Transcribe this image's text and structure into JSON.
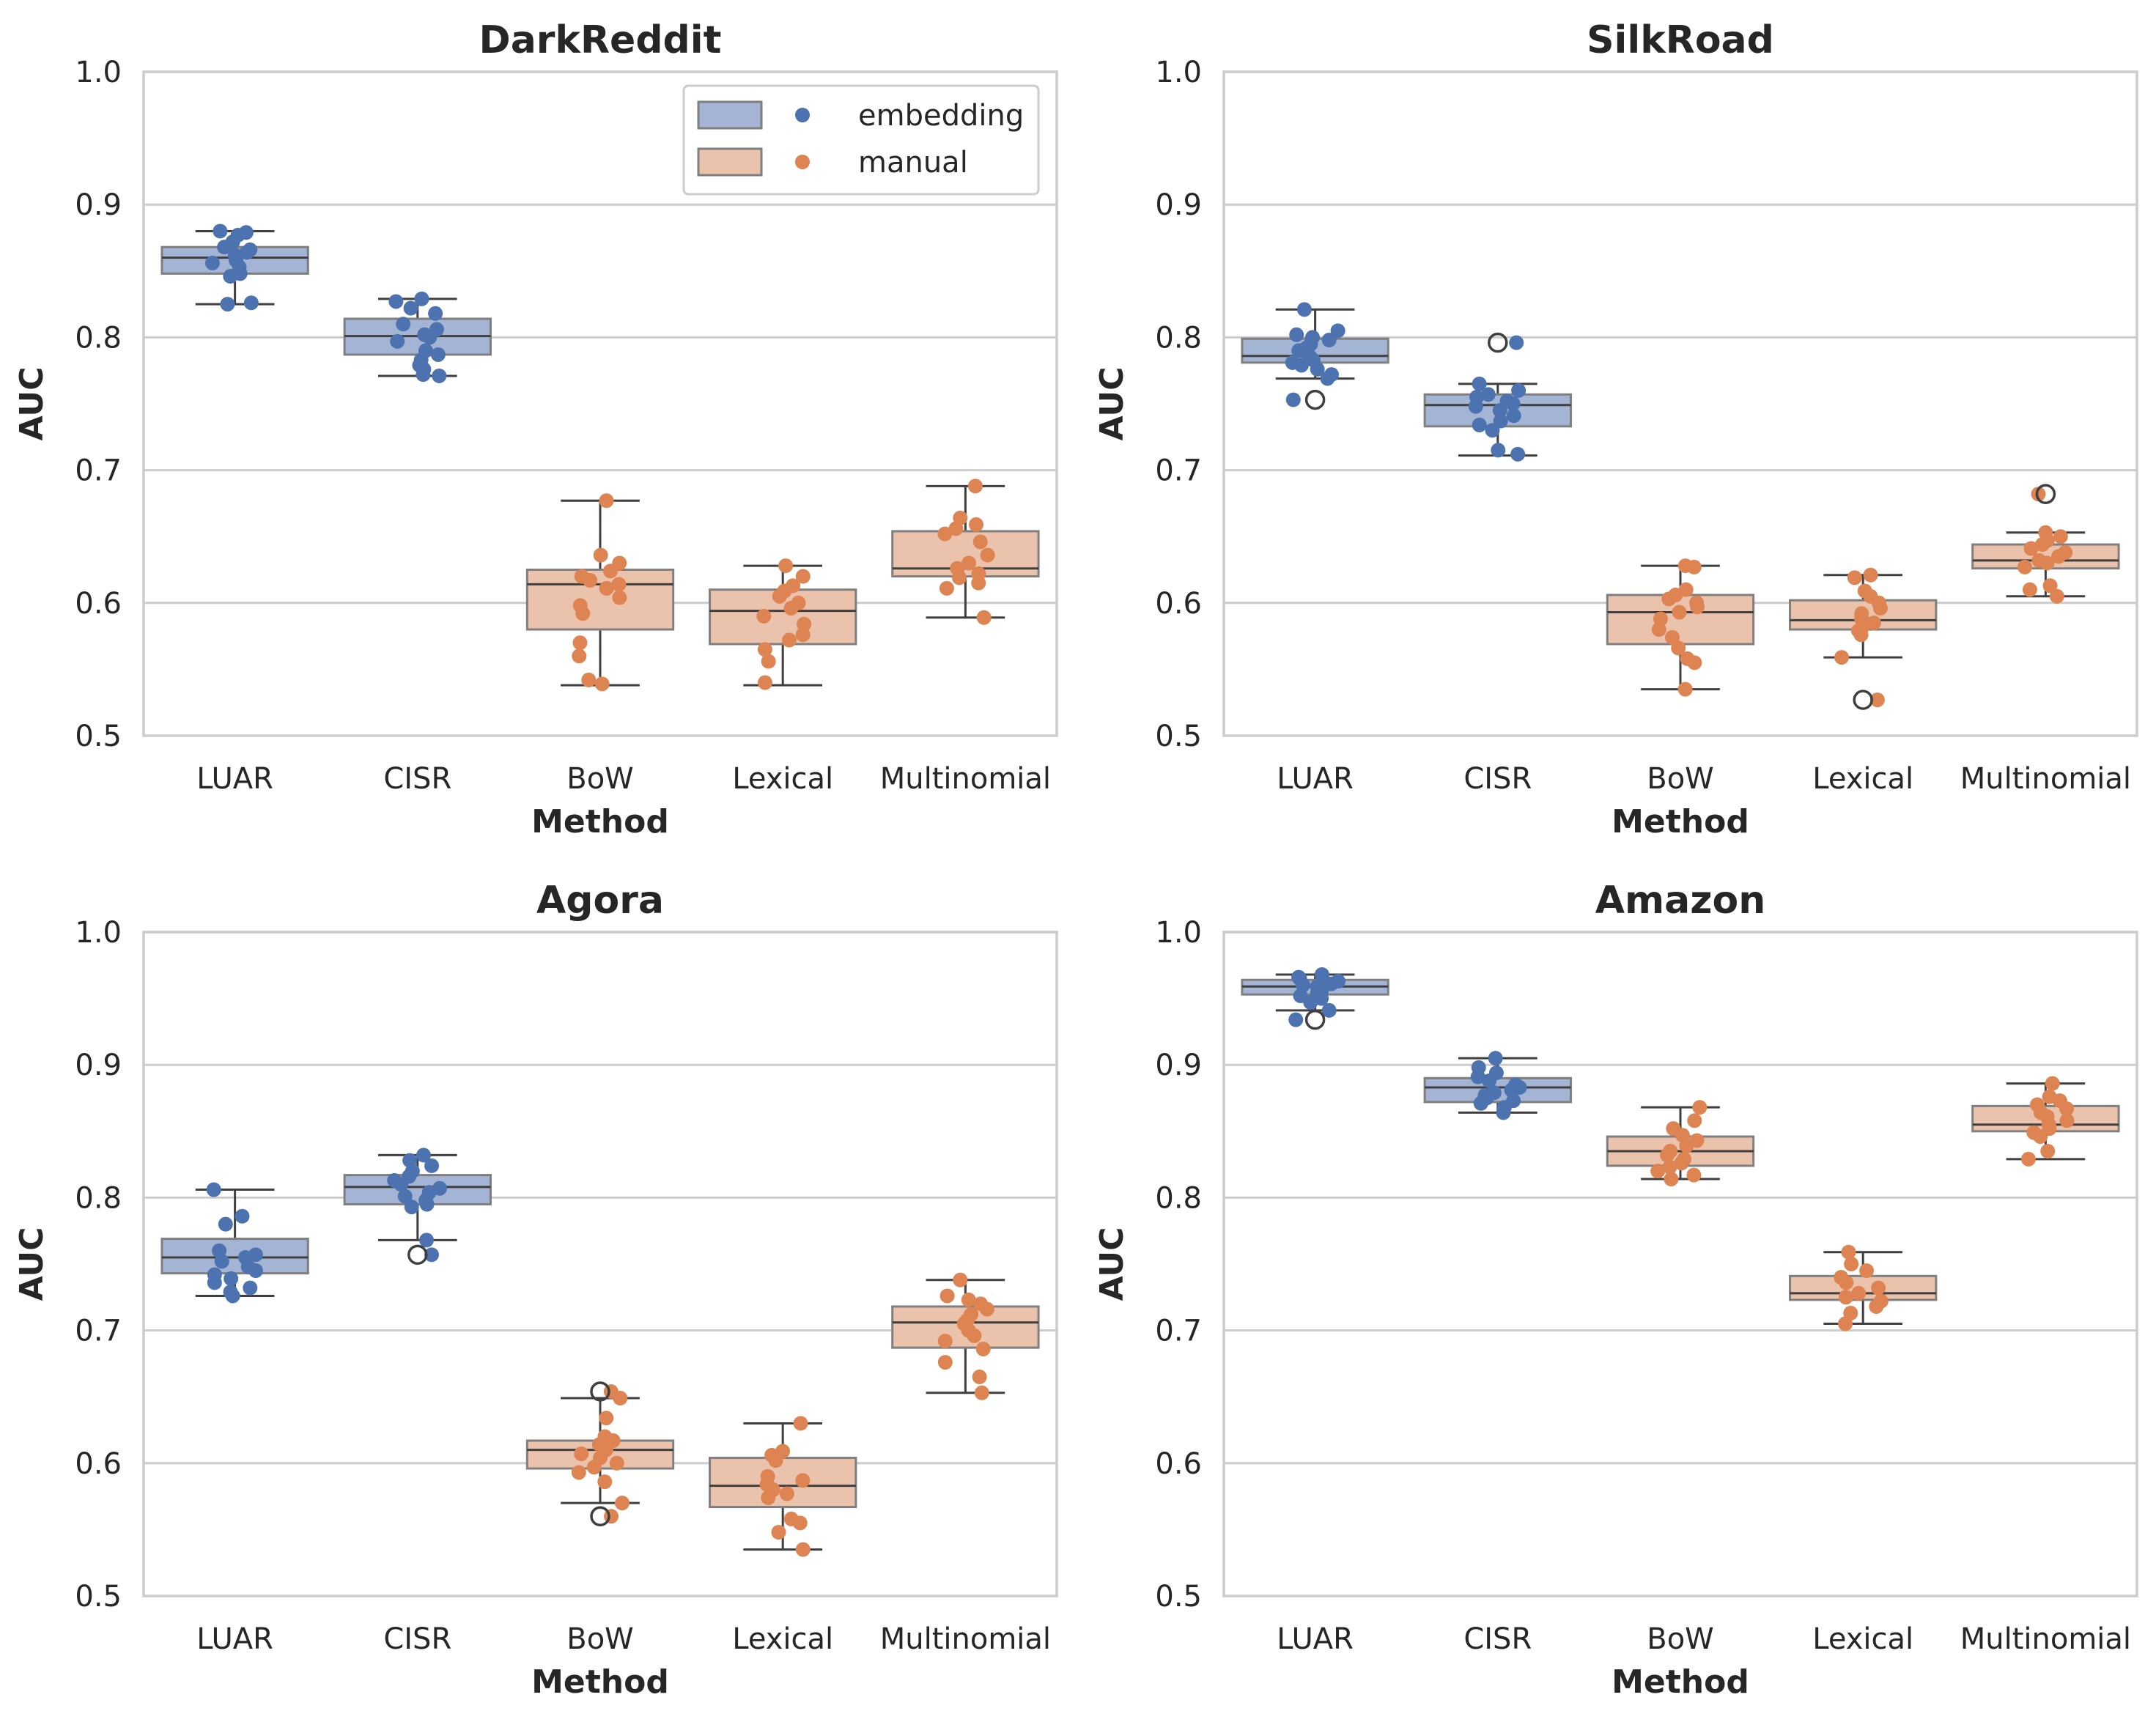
{
  "colors": {
    "embedding_point": "#4c72b0",
    "embedding_box": "#a4b4d4",
    "manual_point": "#dd8452",
    "manual_box": "#ebc2ab",
    "grid": "#cccccc",
    "frame": "#cccccc",
    "whisker": "#3f3f3f"
  },
  "legend": {
    "placement": "top-right of first panel",
    "entries": [
      {
        "label": "embedding",
        "group": "embedding"
      },
      {
        "label": "manual",
        "group": "manual"
      }
    ]
  },
  "chart_data": [
    {
      "type": "box",
      "title": "DarkReddit",
      "xlabel": "Method",
      "ylabel": "AUC",
      "ylim": [
        0.5,
        1.0
      ],
      "yticks": [
        "0.5",
        "0.6",
        "0.7",
        "0.8",
        "0.9",
        "1.0"
      ],
      "grid": "horizontal",
      "categories": [
        "LUAR",
        "CISR",
        "BoW",
        "Lexical",
        "Multinomial"
      ],
      "groups": [
        "embedding",
        "embedding",
        "manual",
        "manual",
        "manual"
      ],
      "boxes": [
        {
          "whislo": 0.825,
          "q1": 0.848,
          "med": 0.86,
          "q3": 0.868,
          "whishi": 0.88,
          "fliers": []
        },
        {
          "whislo": 0.771,
          "q1": 0.787,
          "med": 0.801,
          "q3": 0.814,
          "whishi": 0.829,
          "fliers": []
        },
        {
          "whislo": 0.538,
          "q1": 0.58,
          "med": 0.614,
          "q3": 0.625,
          "whishi": 0.677,
          "fliers": []
        },
        {
          "whislo": 0.538,
          "q1": 0.569,
          "med": 0.594,
          "q3": 0.61,
          "whishi": 0.628,
          "fliers": []
        },
        {
          "whislo": 0.589,
          "q1": 0.62,
          "med": 0.626,
          "q3": 0.654,
          "whishi": 0.688,
          "fliers": []
        }
      ],
      "points": [
        [
          0.88,
          0.879,
          0.877,
          0.872,
          0.868,
          0.866,
          0.864,
          0.862,
          0.86,
          0.858,
          0.856,
          0.853,
          0.848,
          0.846,
          0.826,
          0.825
        ],
        [
          0.829,
          0.827,
          0.822,
          0.818,
          0.81,
          0.806,
          0.802,
          0.8,
          0.797,
          0.79,
          0.787,
          0.783,
          0.779,
          0.776,
          0.772,
          0.771
        ],
        [
          0.677,
          0.636,
          0.63,
          0.624,
          0.62,
          0.617,
          0.614,
          0.611,
          0.604,
          0.598,
          0.592,
          0.57,
          0.56,
          0.542,
          0.539
        ],
        [
          0.628,
          0.62,
          0.613,
          0.609,
          0.605,
          0.6,
          0.596,
          0.59,
          0.584,
          0.576,
          0.572,
          0.565,
          0.556,
          0.54
        ],
        [
          0.688,
          0.664,
          0.659,
          0.656,
          0.652,
          0.646,
          0.636,
          0.63,
          0.626,
          0.622,
          0.619,
          0.615,
          0.611,
          0.589
        ]
      ]
    },
    {
      "type": "box",
      "title": "SilkRoad",
      "xlabel": "Method",
      "ylabel": "AUC",
      "ylim": [
        0.5,
        1.0
      ],
      "yticks": [
        "0.5",
        "0.6",
        "0.7",
        "0.8",
        "0.9",
        "1.0"
      ],
      "grid": "horizontal",
      "categories": [
        "LUAR",
        "CISR",
        "BoW",
        "Lexical",
        "Multinomial"
      ],
      "groups": [
        "embedding",
        "embedding",
        "manual",
        "manual",
        "manual"
      ],
      "boxes": [
        {
          "whislo": 0.769,
          "q1": 0.781,
          "med": 0.786,
          "q3": 0.799,
          "whishi": 0.821,
          "fliers": [
            0.753
          ]
        },
        {
          "whislo": 0.711,
          "q1": 0.733,
          "med": 0.749,
          "q3": 0.757,
          "whishi": 0.765,
          "fliers": [
            0.796
          ]
        },
        {
          "whislo": 0.535,
          "q1": 0.569,
          "med": 0.593,
          "q3": 0.606,
          "whishi": 0.628,
          "fliers": []
        },
        {
          "whislo": 0.559,
          "q1": 0.58,
          "med": 0.587,
          "q3": 0.602,
          "whishi": 0.621,
          "fliers": [
            0.527
          ]
        },
        {
          "whislo": 0.605,
          "q1": 0.626,
          "med": 0.632,
          "q3": 0.644,
          "whishi": 0.653,
          "fliers": [
            0.682
          ]
        }
      ],
      "points": [
        [
          0.821,
          0.805,
          0.802,
          0.8,
          0.798,
          0.795,
          0.792,
          0.79,
          0.786,
          0.783,
          0.781,
          0.779,
          0.776,
          0.772,
          0.769,
          0.753
        ],
        [
          0.796,
          0.765,
          0.76,
          0.757,
          0.755,
          0.752,
          0.75,
          0.748,
          0.745,
          0.741,
          0.737,
          0.734,
          0.73,
          0.715,
          0.712
        ],
        [
          0.628,
          0.627,
          0.61,
          0.606,
          0.603,
          0.6,
          0.597,
          0.593,
          0.588,
          0.58,
          0.574,
          0.566,
          0.558,
          0.555,
          0.535
        ],
        [
          0.621,
          0.619,
          0.609,
          0.605,
          0.6,
          0.596,
          0.592,
          0.588,
          0.585,
          0.582,
          0.579,
          0.576,
          0.559,
          0.527
        ],
        [
          0.682,
          0.653,
          0.65,
          0.647,
          0.644,
          0.641,
          0.638,
          0.635,
          0.632,
          0.63,
          0.627,
          0.613,
          0.61,
          0.605
        ]
      ]
    },
    {
      "type": "box",
      "title": "Agora",
      "xlabel": "Method",
      "ylabel": "AUC",
      "ylim": [
        0.5,
        1.0
      ],
      "yticks": [
        "0.5",
        "0.6",
        "0.7",
        "0.8",
        "0.9",
        "1.0"
      ],
      "grid": "horizontal",
      "categories": [
        "LUAR",
        "CISR",
        "BoW",
        "Lexical",
        "Multinomial"
      ],
      "groups": [
        "embedding",
        "embedding",
        "manual",
        "manual",
        "manual"
      ],
      "boxes": [
        {
          "whislo": 0.726,
          "q1": 0.743,
          "med": 0.755,
          "q3": 0.769,
          "whishi": 0.806,
          "fliers": []
        },
        {
          "whislo": 0.768,
          "q1": 0.795,
          "med": 0.808,
          "q3": 0.817,
          "whishi": 0.832,
          "fliers": [
            0.757
          ]
        },
        {
          "whislo": 0.57,
          "q1": 0.596,
          "med": 0.61,
          "q3": 0.617,
          "whishi": 0.649,
          "fliers": [
            0.56,
            0.654
          ]
        },
        {
          "whislo": 0.535,
          "q1": 0.567,
          "med": 0.583,
          "q3": 0.604,
          "whishi": 0.63,
          "fliers": []
        },
        {
          "whislo": 0.653,
          "q1": 0.687,
          "med": 0.706,
          "q3": 0.718,
          "whishi": 0.738,
          "fliers": []
        }
      ],
      "points": [
        [
          0.806,
          0.786,
          0.78,
          0.76,
          0.757,
          0.755,
          0.752,
          0.748,
          0.745,
          0.742,
          0.739,
          0.736,
          0.732,
          0.729,
          0.726
        ],
        [
          0.832,
          0.828,
          0.824,
          0.82,
          0.816,
          0.813,
          0.81,
          0.807,
          0.804,
          0.801,
          0.798,
          0.795,
          0.793,
          0.768,
          0.757
        ],
        [
          0.654,
          0.649,
          0.634,
          0.62,
          0.617,
          0.614,
          0.61,
          0.607,
          0.604,
          0.6,
          0.597,
          0.593,
          0.586,
          0.57,
          0.56
        ],
        [
          0.63,
          0.609,
          0.606,
          0.602,
          0.59,
          0.587,
          0.584,
          0.58,
          0.577,
          0.574,
          0.558,
          0.555,
          0.548,
          0.535
        ],
        [
          0.738,
          0.726,
          0.723,
          0.72,
          0.716,
          0.712,
          0.708,
          0.705,
          0.7,
          0.696,
          0.692,
          0.686,
          0.676,
          0.665,
          0.653
        ]
      ]
    },
    {
      "type": "box",
      "title": "Amazon",
      "xlabel": "Method",
      "ylabel": "AUC",
      "ylim": [
        0.5,
        1.0
      ],
      "yticks": [
        "0.5",
        "0.6",
        "0.7",
        "0.8",
        "0.9",
        "1.0"
      ],
      "grid": "horizontal",
      "categories": [
        "LUAR",
        "CISR",
        "BoW",
        "Lexical",
        "Multinomial"
      ],
      "groups": [
        "embedding",
        "embedding",
        "manual",
        "manual",
        "manual"
      ],
      "boxes": [
        {
          "whislo": 0.941,
          "q1": 0.953,
          "med": 0.959,
          "q3": 0.964,
          "whishi": 0.968,
          "fliers": [
            0.934
          ]
        },
        {
          "whislo": 0.864,
          "q1": 0.872,
          "med": 0.883,
          "q3": 0.89,
          "whishi": 0.905,
          "fliers": []
        },
        {
          "whislo": 0.814,
          "q1": 0.824,
          "med": 0.835,
          "q3": 0.846,
          "whishi": 0.868,
          "fliers": []
        },
        {
          "whislo": 0.705,
          "q1": 0.723,
          "med": 0.728,
          "q3": 0.741,
          "whishi": 0.759,
          "fliers": []
        },
        {
          "whislo": 0.829,
          "q1": 0.85,
          "med": 0.855,
          "q3": 0.869,
          "whishi": 0.886,
          "fliers": []
        }
      ],
      "points": [
        [
          0.968,
          0.966,
          0.965,
          0.963,
          0.962,
          0.961,
          0.96,
          0.959,
          0.958,
          0.956,
          0.954,
          0.952,
          0.95,
          0.947,
          0.941,
          0.934
        ],
        [
          0.905,
          0.898,
          0.894,
          0.891,
          0.888,
          0.885,
          0.883,
          0.881,
          0.879,
          0.877,
          0.875,
          0.873,
          0.871,
          0.868,
          0.864
        ],
        [
          0.868,
          0.858,
          0.852,
          0.847,
          0.843,
          0.839,
          0.835,
          0.832,
          0.829,
          0.826,
          0.823,
          0.82,
          0.817,
          0.814
        ],
        [
          0.759,
          0.75,
          0.745,
          0.74,
          0.736,
          0.732,
          0.728,
          0.725,
          0.722,
          0.718,
          0.713,
          0.705
        ],
        [
          0.886,
          0.876,
          0.873,
          0.87,
          0.867,
          0.864,
          0.861,
          0.858,
          0.855,
          0.852,
          0.849,
          0.846,
          0.835,
          0.829
        ]
      ]
    }
  ]
}
